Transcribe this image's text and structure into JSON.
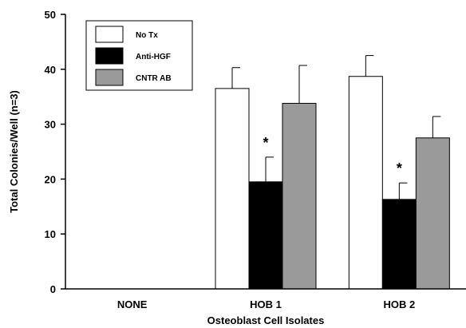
{
  "chart_data": {
    "type": "bar",
    "categories": [
      "NONE",
      "HOB 1",
      "HOB 2"
    ],
    "series": [
      {
        "name": "No Tx",
        "color": "#ffffff",
        "values": [
          null,
          36.5,
          38.7
        ],
        "errors": [
          null,
          3.8,
          3.8
        ]
      },
      {
        "name": "Anti-HGF",
        "color": "#000000",
        "values": [
          null,
          19.5,
          16.3
        ],
        "errors": [
          null,
          4.5,
          3.0
        ]
      },
      {
        "name": "CNTR AB",
        "color": "#9a9a9a",
        "values": [
          null,
          33.8,
          27.5
        ],
        "errors": [
          null,
          6.9,
          3.9
        ]
      }
    ],
    "significance": [
      {
        "category": "HOB 1",
        "series": "Anti-HGF",
        "label": "*"
      },
      {
        "category": "HOB 2",
        "series": "Anti-HGF",
        "label": "*"
      }
    ],
    "xlabel": "Osteoblast Cell Isolates",
    "ylabel": "Total Colonies/Well (n=3)",
    "ylim": [
      0,
      50
    ],
    "yticks": [
      0,
      10,
      20,
      30,
      40,
      50
    ],
    "legend_position": "top-left",
    "grid": false
  }
}
